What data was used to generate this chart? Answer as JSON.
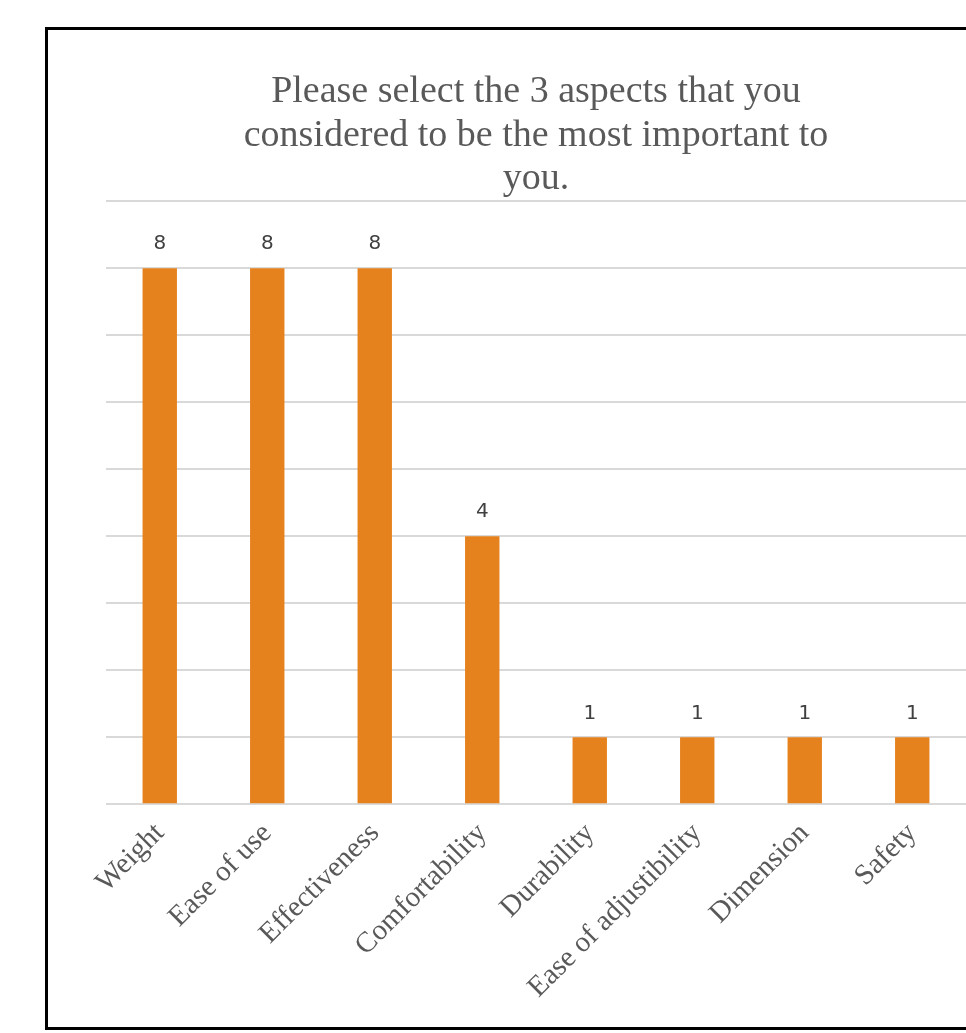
{
  "chart_data": {
    "type": "bar",
    "title": "Please select the 3 aspects that you considered to be the most important to you.",
    "categories": [
      "Weight",
      "Ease of use",
      "Effectiveness",
      "Comfortability",
      "Durability",
      "Ease of adjustibility",
      "Dimension",
      "Safety"
    ],
    "values": [
      8,
      8,
      8,
      4,
      1,
      1,
      1,
      1
    ],
    "color": "#e6821e",
    "ylim": [
      0,
      9
    ],
    "yticks": [
      {
        "value": 0,
        "label": null
      },
      {
        "value": 1,
        "label": null
      },
      {
        "value": 2,
        "label": null
      },
      {
        "value": 3,
        "label": null
      },
      {
        "value": 4,
        "label": null
      },
      {
        "value": 5,
        "label": null
      },
      {
        "value": 6,
        "label": null
      },
      {
        "value": 7,
        "label": null
      },
      {
        "value": 8,
        "label": null
      },
      {
        "value": 9,
        "label": null
      }
    ],
    "grid": "y",
    "tick_labels": "x",
    "data_labels": true,
    "legend": false
  }
}
